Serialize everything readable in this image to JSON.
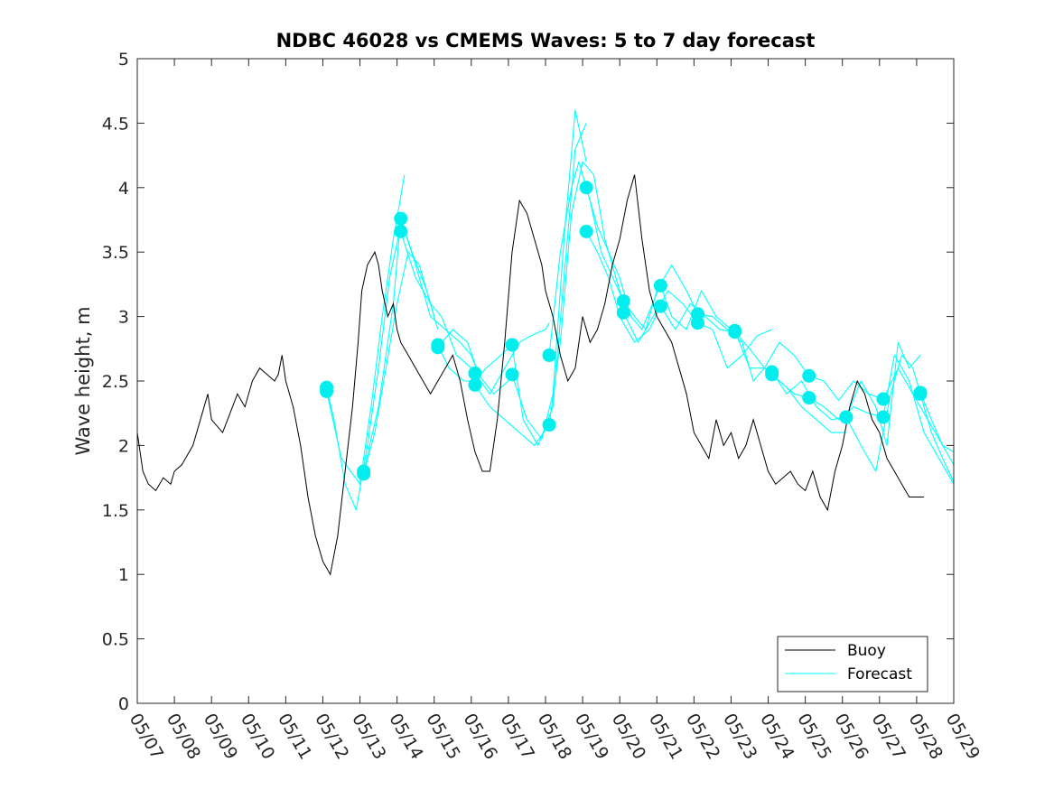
{
  "chart_data": {
    "type": "line",
    "title": "NDBC 46028 vs CMEMS Waves: 5 to 7 day forecast",
    "xlabel": "",
    "ylabel": "Wave height, m",
    "xlim": [
      0,
      22
    ],
    "ylim": [
      0,
      5
    ],
    "grid": false,
    "legend_position": "bottom-right",
    "x_tick_labels": [
      "05/07",
      "05/08",
      "05/09",
      "05/10",
      "05/11",
      "05/12",
      "05/13",
      "05/14",
      "05/15",
      "05/16",
      "05/17",
      "05/18",
      "05/19",
      "05/20",
      "05/21",
      "05/22",
      "05/23",
      "05/24",
      "05/25",
      "05/26",
      "05/27",
      "05/28",
      "05/29"
    ],
    "y_ticks": [
      0,
      0.5,
      1,
      1.5,
      2,
      2.5,
      3,
      3.5,
      4,
      4.5,
      5
    ],
    "y_tick_labels": [
      "0",
      "0.5",
      "1",
      "1.5",
      "2",
      "2.5",
      "3",
      "3.5",
      "4",
      "4.5",
      "5"
    ],
    "colors": {
      "buoy": "#000000",
      "forecast": "#00ffff",
      "forecast_marker": "#00eeee"
    },
    "series": [
      {
        "name": "Buoy",
        "x_unit": "days after 05/07",
        "x": [
          0,
          0.15,
          0.3,
          0.5,
          0.7,
          0.9,
          1.0,
          1.2,
          1.5,
          1.7,
          1.9,
          2.0,
          2.3,
          2.5,
          2.7,
          2.9,
          3.1,
          3.3,
          3.5,
          3.7,
          3.8,
          3.9,
          4.0,
          4.2,
          4.4,
          4.6,
          4.8,
          5.0,
          5.2,
          5.4,
          5.6,
          5.8,
          5.95,
          6.05,
          6.2,
          6.4,
          6.5,
          6.6,
          6.75,
          6.9,
          7.0,
          7.1,
          7.3,
          7.5,
          7.7,
          7.9,
          8.1,
          8.3,
          8.5,
          8.7,
          8.9,
          9.1,
          9.3,
          9.5,
          9.7,
          9.9,
          10.1,
          10.3,
          10.5,
          10.7,
          10.9,
          11.0,
          11.2,
          11.4,
          11.6,
          11.8,
          12.0,
          12.2,
          12.4,
          12.6,
          12.8,
          13.0,
          13.2,
          13.4,
          13.6,
          13.8,
          14.0,
          14.2,
          14.4,
          14.6,
          14.8,
          15.0,
          15.2,
          15.4,
          15.6,
          15.8,
          16.0,
          16.2,
          16.4,
          16.6,
          16.8,
          17.0,
          17.2,
          17.4,
          17.6,
          17.8,
          18.0,
          18.2,
          18.4,
          18.6,
          18.8,
          19.0,
          19.2,
          19.4,
          19.6,
          19.8,
          20.0,
          20.2,
          20.4,
          20.6,
          20.8,
          21.0,
          21.2
        ],
        "values": [
          2.1,
          1.8,
          1.7,
          1.65,
          1.75,
          1.7,
          1.8,
          1.85,
          2.0,
          2.2,
          2.4,
          2.2,
          2.1,
          2.25,
          2.4,
          2.3,
          2.5,
          2.6,
          2.55,
          2.5,
          2.55,
          2.7,
          2.5,
          2.3,
          2.0,
          1.6,
          1.3,
          1.1,
          1.0,
          1.3,
          1.8,
          2.3,
          2.8,
          3.2,
          3.4,
          3.5,
          3.4,
          3.2,
          3.0,
          3.1,
          2.9,
          2.8,
          2.7,
          2.6,
          2.5,
          2.4,
          2.5,
          2.6,
          2.7,
          2.5,
          2.2,
          1.95,
          1.8,
          1.8,
          2.2,
          2.8,
          3.5,
          3.9,
          3.8,
          3.6,
          3.4,
          3.2,
          3.0,
          2.7,
          2.5,
          2.6,
          3.0,
          2.8,
          2.9,
          3.1,
          3.4,
          3.6,
          3.9,
          4.1,
          3.6,
          3.2,
          3.0,
          2.9,
          2.8,
          2.6,
          2.4,
          2.1,
          2.0,
          1.9,
          2.2,
          2.0,
          2.1,
          1.9,
          2.0,
          2.2,
          2.0,
          1.8,
          1.7,
          1.75,
          1.8,
          1.7,
          1.65,
          1.8,
          1.6,
          1.5,
          1.8,
          2.0,
          2.3,
          2.5,
          2.4,
          2.2,
          2.1,
          1.9,
          1.8,
          1.7,
          1.6,
          1.6,
          1.6
        ]
      },
      {
        "name": "Forecast",
        "x_unit": "days after 05/07",
        "lines": [
          {
            "x": [
              5.1,
              5.3,
              5.6,
              5.9,
              6.2,
              6.5,
              6.8,
              7.1
            ],
            "values": [
              2.45,
              2.2,
              1.7,
              1.5,
              2.0,
              2.6,
              3.3,
              3.7
            ]
          },
          {
            "x": [
              5.1,
              5.5,
              6.0,
              6.3,
              6.6,
              6.9,
              7.2
            ],
            "values": [
              2.42,
              1.9,
              1.7,
              2.3,
              3.0,
              3.6,
              4.1
            ]
          },
          {
            "x": [
              6.1,
              6.4,
              6.7,
              7.0,
              7.3,
              7.6,
              8.0
            ],
            "values": [
              1.78,
              2.1,
              2.6,
              3.1,
              3.5,
              3.4,
              3.0
            ]
          },
          {
            "x": [
              6.1,
              6.5,
              6.9,
              7.1,
              7.4,
              7.8,
              8.1
            ],
            "values": [
              1.8,
              2.3,
              3.1,
              3.76,
              3.5,
              3.2,
              2.9
            ]
          },
          {
            "x": [
              7.1,
              7.5,
              7.9,
              8.3,
              8.7,
              9.0,
              9.2
            ],
            "values": [
              3.76,
              3.4,
              3.0,
              2.9,
              2.8,
              2.7,
              2.55
            ]
          },
          {
            "x": [
              7.1,
              7.5,
              7.9,
              8.2,
              8.6,
              9.0,
              9.1
            ],
            "values": [
              3.66,
              3.3,
              3.1,
              3.0,
              2.7,
              2.6,
              2.5
            ]
          },
          {
            "x": [
              8.1,
              8.4,
              8.8,
              9.1,
              9.4,
              9.8,
              10.1
            ],
            "values": [
              2.78,
              2.6,
              2.5,
              2.5,
              2.6,
              2.7,
              2.78
            ]
          },
          {
            "x": [
              8.1,
              8.5,
              8.9,
              9.2,
              9.6,
              10.0,
              10.1
            ],
            "values": [
              2.76,
              2.9,
              2.8,
              2.55,
              2.4,
              2.5,
              2.55
            ]
          },
          {
            "x": [
              9.1,
              9.5,
              9.9,
              10.3,
              10.6,
              11.0,
              11.1
            ],
            "values": [
              2.56,
              2.4,
              2.6,
              2.8,
              2.85,
              2.9,
              2.95
            ]
          },
          {
            "x": [
              9.1,
              9.5,
              9.9,
              10.3,
              10.7,
              11.1
            ],
            "values": [
              2.47,
              2.3,
              2.2,
              2.1,
              2.0,
              2.16
            ]
          },
          {
            "x": [
              10.1,
              10.4,
              10.8,
              11.2,
              11.5,
              11.8,
              12.1
            ],
            "values": [
              2.78,
              2.2,
              2.0,
              2.3,
              3.3,
              4.3,
              4.5
            ]
          },
          {
            "x": [
              10.1,
              10.5,
              10.9,
              11.2,
              11.5,
              11.8,
              12.1
            ],
            "values": [
              2.55,
              2.2,
              2.05,
              2.4,
              3.6,
              4.6,
              4.2
            ]
          },
          {
            "x": [
              11.1,
              11.4,
              11.7,
              12.0,
              12.3,
              12.6,
              13.1
            ],
            "values": [
              2.16,
              2.8,
              3.8,
              4.2,
              4.1,
              3.6,
              3.1
            ]
          },
          {
            "x": [
              11.1,
              11.4,
              11.7,
              11.9,
              12.2,
              12.5,
              13.1
            ],
            "values": [
              2.7,
              3.5,
              4.0,
              4.2,
              3.9,
              3.5,
              3.12
            ]
          },
          {
            "x": [
              12.1,
              12.4,
              12.7,
              13.0,
              13.3,
              13.6,
              14.1
            ],
            "values": [
              4.0,
              3.7,
              3.5,
              3.3,
              3.0,
              2.9,
              3.25
            ]
          },
          {
            "x": [
              12.1,
              12.4,
              12.7,
              13.0,
              13.4,
              13.8,
              14.1
            ],
            "values": [
              3.66,
              3.5,
              3.3,
              3.0,
              2.8,
              2.9,
              3.08
            ]
          },
          {
            "x": [
              13.1,
              13.4,
              13.7,
              14.0,
              14.4,
              14.8,
              15.1
            ],
            "values": [
              3.12,
              3.0,
              2.9,
              3.2,
              3.4,
              3.2,
              3.02
            ]
          },
          {
            "x": [
              13.1,
              13.5,
              13.9,
              14.3,
              14.7,
              15.1
            ],
            "values": [
              3.03,
              2.8,
              3.0,
              3.2,
              3.1,
              2.95
            ]
          },
          {
            "x": [
              14.1,
              14.4,
              14.8,
              15.2,
              15.6,
              16.0,
              16.1
            ],
            "values": [
              3.24,
              3.0,
              2.9,
              3.2,
              3.0,
              2.9,
              2.9
            ]
          },
          {
            "x": [
              14.1,
              14.5,
              14.9,
              15.3,
              15.7,
              16.1
            ],
            "values": [
              3.08,
              2.9,
              3.1,
              3.0,
              2.9,
              2.88
            ]
          },
          {
            "x": [
              15.1,
              15.5,
              15.9,
              16.3,
              16.6,
              16.9,
              17.1
            ],
            "values": [
              3.02,
              3.0,
              2.9,
              2.8,
              2.5,
              2.6,
              2.57
            ]
          },
          {
            "x": [
              15.1,
              15.5,
              15.9,
              16.3,
              16.7,
              17.1
            ],
            "values": [
              2.95,
              2.9,
              2.6,
              2.7,
              2.85,
              2.9
            ]
          },
          {
            "x": [
              16.1,
              16.5,
              16.9,
              17.3,
              17.7,
              18.1
            ],
            "values": [
              2.89,
              2.6,
              2.6,
              2.8,
              2.7,
              2.54
            ]
          },
          {
            "x": [
              16.1,
              16.5,
              16.9,
              17.3,
              17.7,
              18.1
            ],
            "values": [
              2.88,
              2.75,
              2.6,
              2.5,
              2.4,
              2.37
            ]
          },
          {
            "x": [
              17.1,
              17.5,
              17.9,
              18.3,
              18.7,
              19.1
            ],
            "values": [
              2.57,
              2.4,
              2.5,
              2.3,
              2.2,
              2.22
            ]
          },
          {
            "x": [
              17.1,
              17.5,
              17.9,
              18.3,
              18.7,
              19.1
            ],
            "values": [
              2.55,
              2.45,
              2.3,
              2.2,
              2.1,
              2.1
            ]
          },
          {
            "x": [
              18.1,
              18.5,
              18.9,
              19.3,
              19.7,
              20.1
            ],
            "values": [
              2.54,
              2.5,
              2.35,
              2.5,
              2.4,
              2.36
            ]
          },
          {
            "x": [
              18.1,
              18.5,
              18.9,
              19.3,
              19.7,
              20.1
            ],
            "values": [
              2.37,
              2.3,
              2.2,
              2.3,
              2.25,
              2.22
            ]
          },
          {
            "x": [
              19.1,
              19.5,
              19.9,
              20.2,
              20.5,
              20.8,
              21.1
            ],
            "values": [
              2.22,
              2.5,
              2.3,
              2.0,
              2.8,
              2.6,
              2.7
            ]
          },
          {
            "x": [
              19.1,
              19.5,
              19.9,
              20.3,
              20.6,
              20.9,
              21.1
            ],
            "values": [
              2.22,
              2.0,
              1.8,
              2.4,
              2.7,
              2.6,
              2.4
            ]
          },
          {
            "x": [
              20.1,
              20.5,
              20.9,
              21.3,
              21.7,
              22.0
            ],
            "values": [
              2.36,
              2.6,
              2.4,
              2.2,
              2.0,
              1.85
            ]
          },
          {
            "x": [
              20.1,
              20.4,
              20.8,
              21.2,
              21.6,
              22.0
            ],
            "values": [
              2.22,
              2.7,
              2.5,
              2.1,
              1.9,
              1.7
            ]
          },
          {
            "x": [
              21.1,
              21.4,
              21.7,
              22.0
            ],
            "values": [
              2.41,
              2.2,
              2.0,
              1.95
            ]
          },
          {
            "x": [
              21.1,
              21.4,
              21.7,
              22.0
            ],
            "values": [
              2.4,
              2.1,
              1.9,
              1.72
            ]
          }
        ],
        "markers": {
          "x": [
            5.1,
            5.1,
            6.1,
            6.1,
            7.1,
            7.1,
            8.1,
            8.1,
            9.1,
            9.1,
            10.1,
            10.1,
            11.1,
            11.1,
            12.1,
            12.1,
            13.1,
            13.1,
            14.1,
            14.1,
            15.1,
            15.1,
            16.1,
            16.1,
            17.1,
            17.1,
            18.1,
            18.1,
            19.1,
            19.1,
            20.1,
            20.1,
            21.1,
            21.1
          ],
          "values": [
            2.45,
            2.42,
            1.78,
            1.8,
            3.76,
            3.66,
            2.78,
            2.76,
            2.56,
            2.47,
            2.78,
            2.55,
            2.16,
            2.7,
            4.0,
            3.66,
            3.12,
            3.03,
            3.24,
            3.08,
            3.02,
            2.95,
            2.89,
            2.88,
            2.57,
            2.55,
            2.54,
            2.37,
            2.22,
            2.22,
            2.36,
            2.22,
            2.41,
            2.4
          ]
        }
      }
    ]
  }
}
